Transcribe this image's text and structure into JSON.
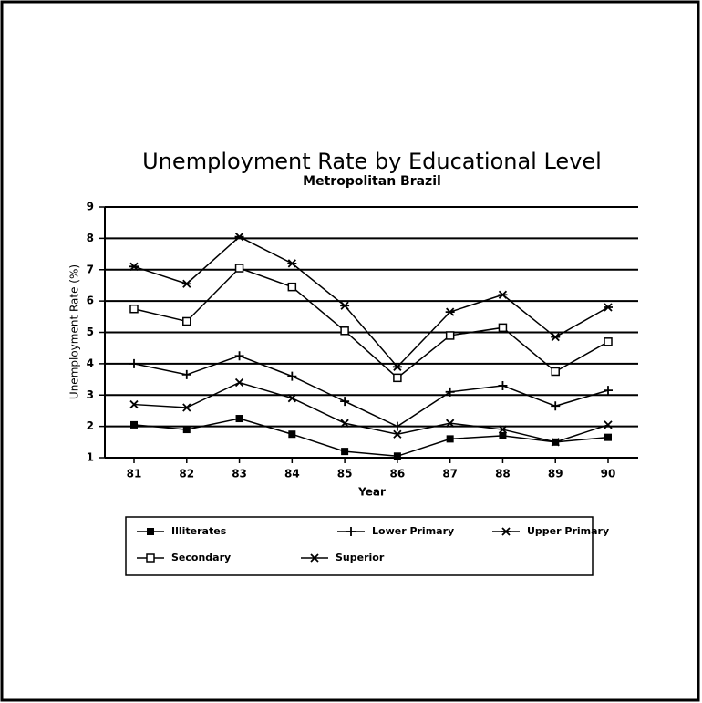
{
  "chart_data": {
    "type": "line",
    "title": "Unemployment Rate by Educational Level",
    "subtitle": "Metropolitan Brazil",
    "x_label": "Year",
    "y_label": "Unemployment Rate (%)",
    "categories": [
      "81",
      "82",
      "83",
      "84",
      "85",
      "86",
      "87",
      "88",
      "89",
      "90"
    ],
    "ylim": [
      1,
      9
    ],
    "yticks": [
      1,
      2,
      3,
      4,
      5,
      6,
      7,
      8,
      9
    ],
    "grid": true,
    "series": [
      {
        "name": "Illiterates",
        "color": "#000000",
        "marker": "square-filled",
        "values": [
          2.05,
          1.9,
          2.25,
          1.75,
          1.2,
          1.05,
          1.6,
          1.7,
          1.5,
          1.65
        ]
      },
      {
        "name": "Lower Primary",
        "color": "#000000",
        "marker": "plus",
        "values": [
          4.0,
          3.65,
          4.25,
          3.6,
          2.8,
          2.0,
          3.1,
          3.3,
          2.65,
          3.15
        ]
      },
      {
        "name": "Upper Primary",
        "color": "#000000",
        "marker": "star",
        "values": [
          7.1,
          6.55,
          8.05,
          7.2,
          5.85,
          3.9,
          5.65,
          6.2,
          4.85,
          5.8
        ]
      },
      {
        "name": "Secondary",
        "color": "#000000",
        "marker": "square-open",
        "values": [
          5.75,
          5.35,
          7.05,
          6.45,
          5.05,
          3.55,
          4.9,
          5.15,
          3.75,
          4.7
        ]
      },
      {
        "name": "Superior",
        "color": "#000000",
        "marker": "cross",
        "values": [
          2.7,
          2.6,
          3.4,
          2.9,
          2.1,
          1.75,
          2.1,
          1.9,
          1.5,
          2.05
        ]
      }
    ]
  }
}
